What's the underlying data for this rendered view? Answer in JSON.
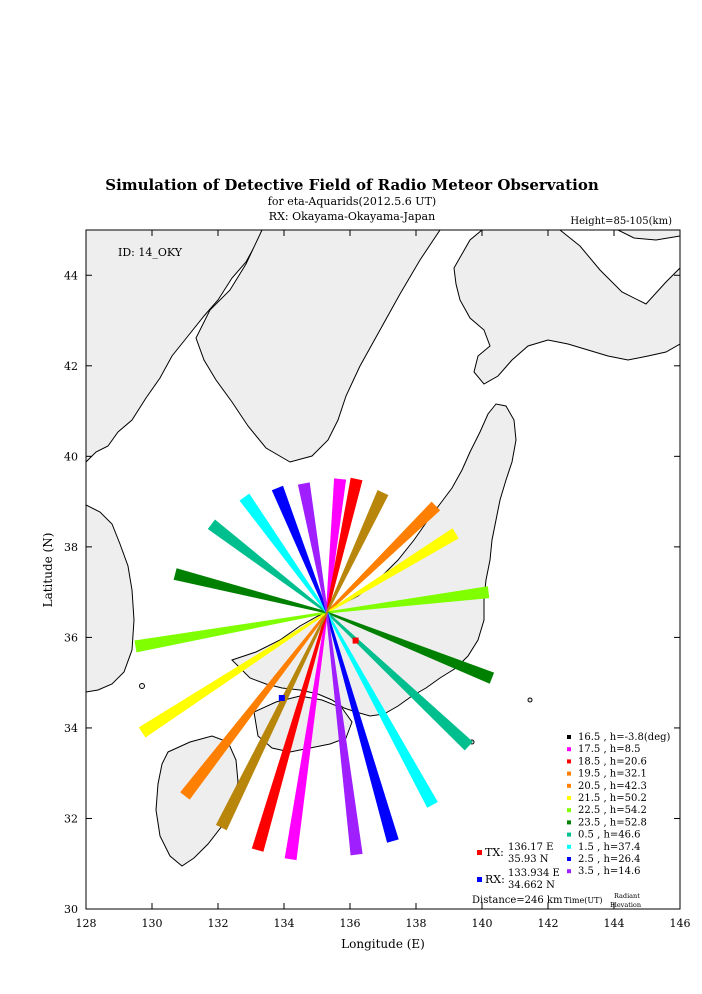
{
  "chart_data": {
    "type": "line",
    "title": "Simulation of Detective Field of Radio Meteor Observation",
    "subtitle1": "for eta-Aquarids(2012.5.6 UT)",
    "subtitle2": "RX: Okayama-Okayama-Japan",
    "height_note": "Height=85-105(km)",
    "id_label": "ID: 14_OKY",
    "xlabel": "Longitude (E)",
    "ylabel": "Latitude (N)",
    "xlim": [
      128,
      146
    ],
    "ylim": [
      30,
      45
    ],
    "xticks": [
      "128",
      "130",
      "132",
      "134",
      "136",
      "138",
      "140",
      "142",
      "144",
      "146"
    ],
    "yticks": [
      "30",
      "32",
      "34",
      "36",
      "38",
      "40",
      "42",
      "44"
    ],
    "center": [
      135.3,
      36.55
    ],
    "series": [
      {
        "name": "16.5 ,  h=-3.8(deg)",
        "color": "#000000",
        "end": [
          135.3,
          36.55
        ]
      },
      {
        "name": "17.5 ,  h=8.5",
        "color": "#ff00ff",
        "end": [
          134.2,
          31.1
        ],
        "end2": [
          135.7,
          39.5
        ]
      },
      {
        "name": "18.5 ,  h=20.6",
        "color": "#ff0000",
        "end": [
          133.2,
          31.3
        ],
        "end2": [
          136.2,
          39.5
        ]
      },
      {
        "name": "19.5 ,  h=32.1",
        "color": "#ff7f00",
        "end": [
          131.0,
          32.5
        ],
        "end2": [
          138.6,
          38.9
        ]
      },
      {
        "name": "20.5 ,  h=42.3",
        "color": "#ff7f00",
        "end": [
          131.0,
          32.5
        ],
        "end2": [
          138.6,
          38.9
        ]
      },
      {
        "name": "21.5 ,  h=50.2",
        "color": "#ffff00",
        "end": [
          129.7,
          33.9
        ],
        "end2": [
          139.2,
          38.3
        ]
      },
      {
        "name": "22.5 ,  h=54.2",
        "color": "#7fff00",
        "end": [
          129.5,
          35.8
        ],
        "end2": [
          140.2,
          37.0
        ]
      },
      {
        "name": "23.5 ,  h=52.8",
        "color": "#008000",
        "end": [
          130.7,
          37.4
        ],
        "end2": [
          140.3,
          35.1
        ]
      },
      {
        "name": "0.5  ,  h=46.6",
        "color": "#00bf8f",
        "end": [
          131.8,
          38.5
        ],
        "end2": [
          139.6,
          33.6
        ]
      },
      {
        "name": "1.5  ,  h=37.4",
        "color": "#00ffff",
        "end": [
          132.8,
          39.1
        ],
        "end2": [
          138.5,
          32.3
        ]
      },
      {
        "name": "2.5  ,  h=26.4",
        "color": "#0000ff",
        "end": [
          133.8,
          39.3
        ],
        "end2": [
          137.3,
          31.5
        ]
      },
      {
        "name": "3.5  ,  h=14.6",
        "color": "#9f1fff",
        "end": [
          134.6,
          39.4
        ],
        "end2": [
          136.2,
          31.2
        ]
      }
    ],
    "extra_strands": [
      {
        "color": "#b8860b",
        "end": [
          132.1,
          31.8
        ],
        "end2": [
          137.0,
          39.2
        ]
      }
    ],
    "legend_footer": [
      "Time(UT)",
      "Radiant",
      "Elevation"
    ],
    "tx": {
      "label": "TX:",
      "lon": "136.17 E",
      "lat": "35.93 N",
      "color": "#ff0000",
      "x": 136.17,
      "y": 35.93
    },
    "rx": {
      "label": "RX:",
      "lon": "133.934 E",
      "lat": "34.662 N",
      "color": "#0000ff",
      "x": 133.934,
      "y": 34.662
    },
    "distance": "Distance=246 km"
  }
}
